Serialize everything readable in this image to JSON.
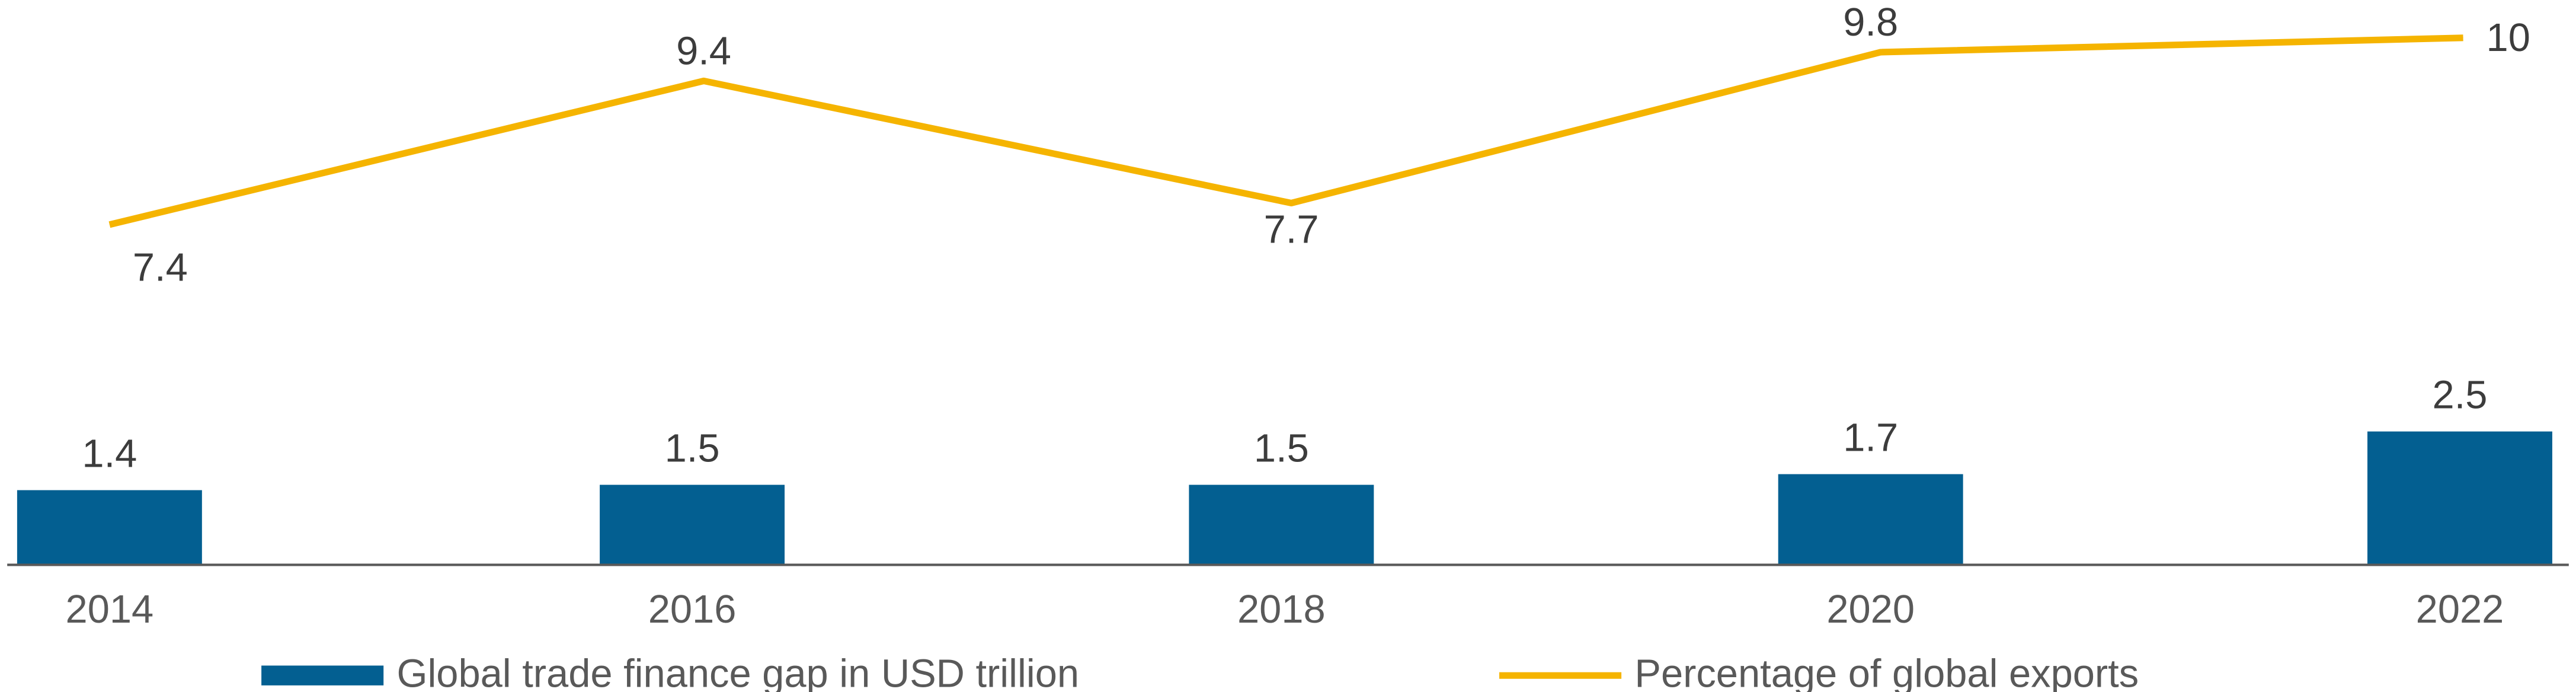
{
  "chart_data": {
    "type": "bar+line",
    "categories": [
      "2014",
      "2016",
      "2018",
      "2020",
      "2022"
    ],
    "series": [
      {
        "name": "Global trade finance gap in USD trillion",
        "type": "bar",
        "values": [
          1.4,
          1.5,
          1.5,
          1.7,
          2.5
        ],
        "color": "#035f91"
      },
      {
        "name": "Percentage of global exports",
        "type": "line",
        "values": [
          7.4,
          9.4,
          7.7,
          9.8,
          10
        ],
        "color": "#f5b400"
      }
    ],
    "value_labels": {
      "bar": [
        "1.4",
        "1.5",
        "1.5",
        "1.7",
        "2.5"
      ],
      "line": [
        "7.4",
        "9.4",
        "7.7",
        "9.8",
        "10"
      ]
    },
    "legend_position": "bottom",
    "grid": false,
    "axis_color": "#595959"
  }
}
